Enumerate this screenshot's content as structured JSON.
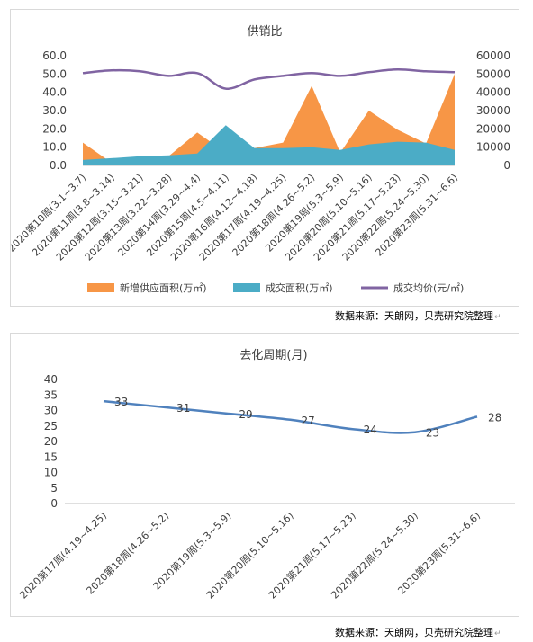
{
  "chart_data": [
    {
      "type": "area",
      "title": "供销比",
      "categories": [
        "2020第10周(3.1~3.7)",
        "2020第11周(3.8~3.14)",
        "2020第12周(3.15~3.21)",
        "2020第13周(3.22~3.28)",
        "2020第14周(3.29~4.4)",
        "2020第15周(4.5~4.11)",
        "2020第16周(4.12~4.18)",
        "2020第17周(4.19~4.25)",
        "2020第18周(4.26~5.2)",
        "2020第19周(5.3~5.9)",
        "2020第20周(5.10~5.16)",
        "2020第21周(5.17~5.23)",
        "2020第22周(5.24~5.30)",
        "2020第23周(5.31~6.6)"
      ],
      "series": [
        {
          "name": "新增供应面积(万㎡)",
          "type": "area",
          "axis": "left",
          "color": "#f79646",
          "values": [
            12.5,
            1.5,
            4.5,
            5,
            18,
            7,
            9.5,
            12.5,
            43.5,
            7,
            30,
            19.5,
            12,
            50
          ]
        },
        {
          "name": "成交面积(万㎡)",
          "type": "area",
          "axis": "left",
          "color": "#4bacc6",
          "values": [
            3,
            4,
            5,
            5.5,
            6.5,
            22,
            9.5,
            9.5,
            10,
            8.5,
            11.5,
            13,
            12.5,
            8.5
          ]
        },
        {
          "name": "成交均价(元/㎡)",
          "type": "line",
          "axis": "right",
          "color": "#8064a2",
          "values": [
            50500,
            52000,
            51500,
            49000,
            50500,
            42000,
            47000,
            49000,
            50500,
            49000,
            51000,
            52500,
            51500,
            51000
          ]
        }
      ],
      "y_left": {
        "min": 0,
        "max": 60,
        "ticks": [
          "0.0",
          "10.0",
          "20.0",
          "30.0",
          "40.0",
          "50.0",
          "60.0"
        ]
      },
      "y_right": {
        "min": 0,
        "max": 60000,
        "ticks": [
          "0",
          "10000",
          "20000",
          "30000",
          "40000",
          "50000",
          "60000"
        ]
      },
      "legend": "bottom",
      "grid": false
    },
    {
      "type": "line",
      "title": "去化周期(月)",
      "categories": [
        "2020第17周(4.19~4.25)",
        "2020第18周(4.26~5.2)",
        "2020第19周(5.3~5.9)",
        "2020第20周(5.10~5.16)",
        "2020第21周(5.17~5.23)",
        "2020第22周(5.24~5.30)",
        "2020第23周(5.31~6.6)"
      ],
      "series": [
        {
          "type": "line",
          "color": "#4f81bd",
          "values": [
            33,
            31,
            29,
            27,
            24,
            23,
            28
          ]
        }
      ],
      "ylim": [
        0,
        40
      ],
      "y_ticks": [
        "0",
        "5",
        "10",
        "15",
        "20",
        "25",
        "30",
        "35",
        "40"
      ],
      "data_labels": true,
      "grid": false
    }
  ],
  "source_text": "数据来源：天朗网，贝壳研究院整理",
  "return_mark": "↵"
}
